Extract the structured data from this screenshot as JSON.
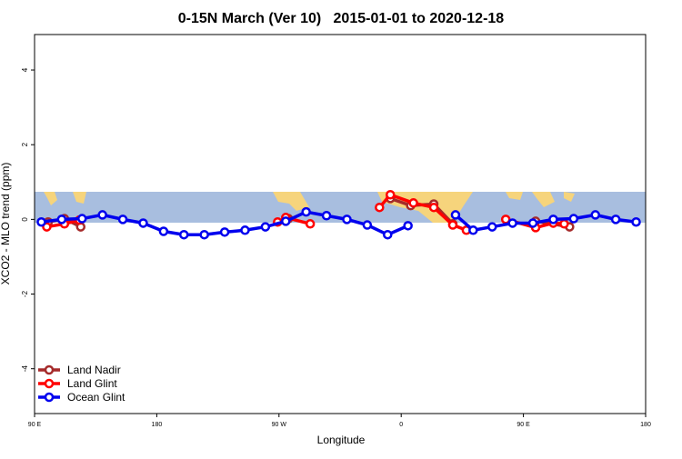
{
  "chart_data": {
    "type": "line",
    "title": "0-15N March (Ver 10)   2015-01-01 to 2020-12-18",
    "xlabel": "Longitude",
    "ylabel": "XCO2 - MLO trend (ppm)",
    "xlim": [
      90,
      540
    ],
    "ylim": [
      -5.2,
      4.95
    ],
    "xticks": [
      {
        "value": 90,
        "label": "90 E"
      },
      {
        "value": 180,
        "label": "180"
      },
      {
        "value": 270,
        "label": "90 W"
      },
      {
        "value": 360,
        "label": "0"
      },
      {
        "value": 450,
        "label": "90 E"
      },
      {
        "value": 540,
        "label": "180"
      }
    ],
    "yticks": [
      4,
      2,
      0,
      -2,
      -4
    ],
    "legend": "bottom-left",
    "series": [
      {
        "name": "Land Nadir",
        "color": "#a52a2a",
        "x": [
          100,
          112,
          124,
          null,
          277,
          null,
          352,
          367,
          384,
          398,
          null,
          459,
          484
        ],
        "values": [
          -0.07,
          0.02,
          -0.2,
          null,
          0.02,
          null,
          0.56,
          0.37,
          0.41,
          -0.12,
          null,
          -0.05,
          -0.2
        ]
      },
      {
        "name": "Land Glint",
        "color": "#ff0000",
        "x": [
          99,
          112,
          123,
          null,
          269,
          275,
          293,
          null,
          344,
          352,
          369,
          384,
          398,
          408,
          null,
          437,
          459,
          472,
          480
        ],
        "values": [
          -0.2,
          -0.12,
          -0.02,
          null,
          -0.07,
          0.05,
          -0.12,
          null,
          0.32,
          0.66,
          0.44,
          0.32,
          -0.15,
          -0.29,
          null,
          0,
          -0.22,
          -0.1,
          -0.12
        ]
      },
      {
        "name": "Ocean Glint",
        "color": "#0000ee",
        "x": [
          95,
          110,
          125,
          140,
          155,
          170,
          185,
          200,
          215,
          230,
          245,
          260,
          275,
          290,
          305,
          320,
          335,
          350,
          365,
          null,
          400,
          413,
          427,
          442,
          457,
          472,
          487,
          503,
          518,
          533
        ],
        "values": [
          -0.07,
          0,
          0.02,
          0.12,
          0,
          -0.1,
          -0.32,
          -0.41,
          -0.41,
          -0.34,
          -0.29,
          -0.2,
          -0.05,
          0.2,
          0.1,
          0,
          -0.15,
          -0.41,
          -0.17,
          null,
          0.12,
          -0.29,
          -0.2,
          -0.1,
          -0.1,
          0,
          0.02,
          0.12,
          0,
          -0.07
        ]
      }
    ]
  }
}
